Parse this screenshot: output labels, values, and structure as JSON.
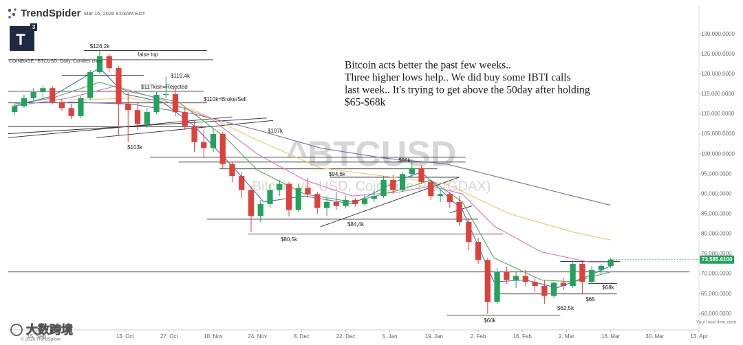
{
  "header": {
    "brand": "TrendSpider",
    "timestamp": "Mar 16, 2026 8:03AM EDT",
    "logo_letter": "T",
    "logo_superscript": "3"
  },
  "footer": {
    "copyright": "© 2026 TrendSpider",
    "timezone": "Your local time zone",
    "watermark": "大数跨境"
  },
  "chart_data": {
    "type": "candlestick",
    "chart_label": "COINBASE:^BTCUSD, Daily, Candles chart",
    "symbol": "^BTCUSD",
    "symbol_name": "Bitcoin vs. USD, Coinbase Pro (GDAX)",
    "commentary": [
      "Bitcoin acts better the past few weeks..",
      "Three higher lows help.. We did buy some IBTI calls",
      "last week.. It's trying to get above the 50day after holding",
      "$65-$68k"
    ],
    "xlim": [
      -9,
      210
    ],
    "ylim": [
      56000,
      137000
    ],
    "xticks": [
      {
        "value": 0,
        "label": "15. Sep"
      },
      {
        "value": 28,
        "label": "13. Oct"
      },
      {
        "value": 42,
        "label": "27. Oct"
      },
      {
        "value": 56,
        "label": "10. Nov"
      },
      {
        "value": 70,
        "label": "24. Nov"
      },
      {
        "value": 84,
        "label": "8. Dec"
      },
      {
        "value": 98,
        "label": "22. Dec"
      },
      {
        "value": 112,
        "label": "5. Jan"
      },
      {
        "value": 126,
        "label": "19. Jan"
      },
      {
        "value": 140,
        "label": "2. Feb"
      },
      {
        "value": 154,
        "label": "16. Feb"
      },
      {
        "value": 168,
        "label": "2. Mar"
      },
      {
        "value": 182,
        "label": "16. Mar"
      },
      {
        "value": 196,
        "label": "30. Mar"
      },
      {
        "value": 210,
        "label": "13. Apr"
      }
    ],
    "yticks": [
      {
        "value": 60000,
        "label": "60,000.0000"
      },
      {
        "value": 65000,
        "label": "65,000.0000"
      },
      {
        "value": 70000,
        "label": "70,000.0000"
      },
      {
        "value": 75000,
        "label": "75,000.0000"
      },
      {
        "value": 80000,
        "label": "80,000.0000"
      },
      {
        "value": 85000,
        "label": "85,000.0000"
      },
      {
        "value": 90000,
        "label": "90,000.0000"
      },
      {
        "value": 95000,
        "label": "95,000.0000"
      },
      {
        "value": 100000,
        "label": "100,000.0000"
      },
      {
        "value": 105000,
        "label": "105,000.0000"
      },
      {
        "value": 110000,
        "label": "110,000.0000"
      },
      {
        "value": 115000,
        "label": "115,000.0000"
      },
      {
        "value": 120000,
        "label": "120,000.0000"
      },
      {
        "value": 125000,
        "label": "125,000.0000"
      },
      {
        "value": 130000,
        "label": "130,000.0000"
      }
    ],
    "up_color": "#21a35a",
    "down_color": "#e0403a",
    "candles": {
      "x": [
        -7,
        -4,
        -1,
        2,
        5,
        8,
        11,
        14,
        17,
        20,
        23,
        26,
        29,
        32,
        35,
        38,
        41,
        44,
        47,
        50,
        53,
        56,
        59,
        62,
        65,
        68,
        71,
        74,
        77,
        80,
        83,
        86,
        89,
        92,
        95,
        98,
        101,
        104,
        107,
        110,
        113,
        116,
        119,
        122,
        125,
        128,
        131,
        134,
        137,
        140,
        143,
        146,
        149,
        152,
        155,
        158,
        161,
        164,
        167,
        170,
        173,
        176,
        179,
        182
      ],
      "open": [
        110500,
        112000,
        114000,
        115500,
        116500,
        113000,
        111500,
        109500,
        114000,
        120500,
        124500,
        121500,
        112500,
        111000,
        107500,
        110500,
        114800,
        115000,
        110500,
        107000,
        103000,
        101500,
        105000,
        97500,
        94500,
        91000,
        84500,
        87500,
        91000,
        92500,
        86000,
        91500,
        90000,
        86500,
        88000,
        87000,
        88500,
        87500,
        88800,
        89500,
        93500,
        91000,
        95000,
        96500,
        93000,
        89500,
        90000,
        88000,
        83000,
        78000,
        73500,
        63000,
        70500,
        68500,
        69500,
        68000,
        67000,
        64500,
        67800,
        67000,
        72500,
        68000,
        71000,
        72000
      ],
      "high": [
        112500,
        114800,
        116500,
        117200,
        117000,
        113800,
        112600,
        114500,
        121000,
        126200,
        125000,
        122000,
        115500,
        113000,
        111500,
        115500,
        119400,
        116500,
        111800,
        108500,
        106000,
        106500,
        105500,
        98000,
        95500,
        92000,
        88500,
        92500,
        93500,
        93000,
        92500,
        94000,
        90500,
        89000,
        90500,
        89500,
        89000,
        90000,
        91000,
        94500,
        94800,
        95500,
        98000,
        97200,
        93500,
        91000,
        90500,
        89500,
        84000,
        79000,
        74000,
        71500,
        71800,
        70500,
        71000,
        69000,
        68500,
        68000,
        69000,
        73500,
        73000,
        72000,
        72500,
        74000
      ],
      "low": [
        109800,
        111500,
        113200,
        114000,
        112500,
        110800,
        108800,
        109000,
        113500,
        120000,
        120500,
        104500,
        103000,
        106000,
        106500,
        110000,
        114000,
        109500,
        106000,
        100500,
        99000,
        100500,
        96500,
        93000,
        89000,
        80500,
        83000,
        86500,
        89500,
        84400,
        85500,
        89000,
        85000,
        84500,
        86000,
        86500,
        86800,
        87000,
        88000,
        89000,
        90000,
        90500,
        94000,
        92500,
        88500,
        88000,
        86500,
        82000,
        76000,
        72500,
        60000,
        62500,
        67500,
        66500,
        67000,
        65500,
        62500,
        64000,
        66000,
        66500,
        65000,
        67500,
        70000,
        71500
      ],
      "close": [
        112000,
        114000,
        115500,
        116500,
        113000,
        111500,
        109500,
        114000,
        120500,
        124500,
        121500,
        112500,
        111000,
        107500,
        110500,
        114800,
        115000,
        110500,
        107000,
        103000,
        101500,
        105000,
        97500,
        94500,
        91000,
        84500,
        87500,
        91000,
        92500,
        86000,
        91500,
        90000,
        86500,
        88000,
        87000,
        88500,
        87500,
        88800,
        89500,
        93500,
        91000,
        95000,
        96500,
        93000,
        89500,
        90000,
        88000,
        83000,
        78000,
        73500,
        63000,
        70500,
        68500,
        69500,
        68000,
        67000,
        64500,
        67800,
        67000,
        72500,
        68000,
        71000,
        72000,
        73600
      ]
    },
    "series": [
      {
        "color": "#7b6fa6",
        "x": [
          10,
          30,
          50,
          70,
          90,
          110,
          130,
          150,
          170,
          182
        ],
        "values": [
          113000,
          112500,
          110000,
          106000,
          101500,
          99000,
          97500,
          93500,
          89500,
          87200
        ]
      },
      {
        "color": "#f0c860",
        "x": [
          10,
          30,
          50,
          70,
          90,
          110,
          130,
          150,
          170,
          182
        ],
        "values": [
          113500,
          114000,
          111000,
          103500,
          96500,
          94500,
          92500,
          85000,
          80500,
          78500
        ]
      },
      {
        "color": "#e070c0",
        "x": [
          -7,
          10,
          25,
          40,
          55,
          70,
          85,
          100,
          115,
          125,
          135,
          145,
          160,
          175,
          182
        ],
        "values": [
          112000,
          114000,
          117000,
          113500,
          109000,
          100000,
          93500,
          89500,
          90500,
          92000,
          90000,
          82000,
          75500,
          73000,
          73000
        ]
      },
      {
        "color": "#4caf50",
        "x": [
          -7,
          5,
          20,
          30,
          45,
          60,
          70,
          85,
          100,
          115,
          125,
          135,
          145,
          160,
          170,
          182
        ],
        "values": [
          112500,
          114000,
          118000,
          115500,
          113000,
          104000,
          96000,
          90000,
          88000,
          91000,
          93500,
          88000,
          74000,
          68500,
          68000,
          70500
        ]
      },
      {
        "color": "#3f6fd0",
        "x": [
          -7,
          5,
          20,
          28,
          40,
          50,
          62,
          72,
          85,
          100,
          115,
          122,
          135,
          145,
          155,
          165,
          175,
          182
        ],
        "values": [
          112000,
          114500,
          121500,
          115000,
          113000,
          107000,
          97000,
          88000,
          89500,
          87500,
          93500,
          95500,
          86000,
          68000,
          68500,
          66500,
          69500,
          72000
        ]
      }
    ],
    "drawings": [
      {
        "x": [
          15,
          54
        ],
        "y": [
          125900,
          125900
        ]
      },
      {
        "x": [
          -9,
          56
        ],
        "y": [
          123600,
          123600
        ]
      },
      {
        "x": [
          8,
          34
        ],
        "y": [
          119700,
          119700
        ]
      },
      {
        "x": [
          -9,
          53
        ],
        "y": [
          115700,
          115700
        ]
      },
      {
        "x": [
          -9,
          54
        ],
        "y": [
          112800,
          112800
        ]
      },
      {
        "x": [
          -9,
          54
        ],
        "y": [
          106800,
          106800
        ]
      },
      {
        "x": [
          -9,
          62
        ],
        "y": [
          104100,
          109300
        ]
      },
      {
        "x": [
          19,
          75
        ],
        "y": [
          104100,
          108400
        ]
      },
      {
        "x": [
          -9,
          73
        ],
        "y": [
          105100,
          109000
        ]
      },
      {
        "x": [
          36,
          136
        ],
        "y": [
          99200,
          99200
        ]
      },
      {
        "x": [
          45,
          136
        ],
        "y": [
          98000,
          98000
        ]
      },
      {
        "x": [
          58,
          127
        ],
        "y": [
          96300,
          96300
        ]
      },
      {
        "x": [
          93,
          134
        ],
        "y": [
          94200,
          94200
        ]
      },
      {
        "x": [
          90,
          134
        ],
        "y": [
          81800,
          94200
        ]
      },
      {
        "x": [
          54,
          140
        ],
        "y": [
          83700,
          83700
        ]
      },
      {
        "x": [
          67,
          148
        ],
        "y": [
          80000,
          80000
        ]
      },
      {
        "x": [
          131,
          138
        ],
        "y": [
          85300,
          87000
        ]
      },
      {
        "x": [
          -9,
          207
        ],
        "y": [
          70500,
          70500
        ]
      },
      {
        "x": [
          166,
          185
        ],
        "y": [
          73100,
          73100
        ]
      },
      {
        "x": [
          175,
          184
        ],
        "y": [
          67600,
          67600
        ]
      },
      {
        "x": [
          145,
          184
        ],
        "y": [
          65000,
          65000
        ]
      },
      {
        "x": [
          130,
          166
        ],
        "y": [
          59700,
          59700
        ]
      }
    ],
    "annotations": [
      "$126,2k",
      "false top",
      "$119,4k",
      "$117kish=Rejected",
      "$110k=Broke/Sell",
      "$107k",
      "$103k",
      "$98k",
      "$94,8k",
      "$84,4k",
      "$80,5k",
      "$60k",
      "$62,5k",
      "$65",
      "$68k"
    ],
    "last_price": {
      "value": 73585.61,
      "label": "73,585.6100"
    }
  }
}
